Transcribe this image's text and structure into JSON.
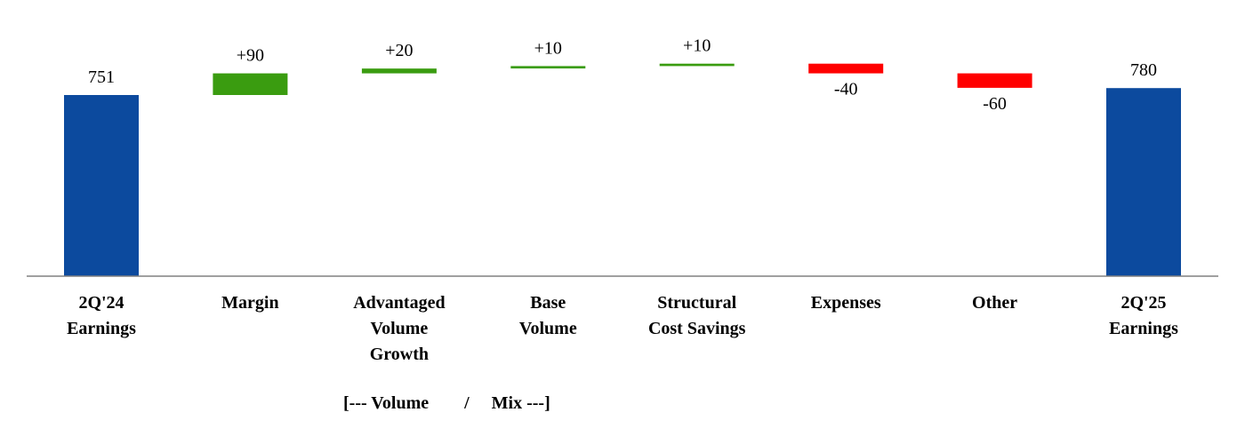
{
  "chart_data": {
    "type": "bar",
    "subtype": "waterfall",
    "title": "",
    "xlabel": "",
    "ylabel": "",
    "categories": [
      "2Q'24\nEarnings",
      "Margin",
      "Advantaged\nVolume\nGrowth",
      "Base\nVolume",
      "Structural\nCost Savings",
      "Expenses",
      "Other",
      "2Q'25\nEarnings"
    ],
    "values": [
      751,
      90,
      20,
      10,
      10,
      -40,
      -60,
      780
    ],
    "labels": [
      "751",
      "+90",
      "+20",
      "+10",
      "+10",
      "-40",
      "-60",
      "780"
    ],
    "bar_kinds": [
      "total",
      "delta",
      "delta",
      "delta",
      "delta",
      "delta",
      "delta",
      "total"
    ],
    "colors": {
      "total": "#0c4a9e",
      "increase": "#3a9c10",
      "decrease": "#ff0000",
      "axis": "#808080"
    },
    "group_annotation": "[--- Volume        /     Mix ---]",
    "grid": false,
    "legend": "none"
  }
}
